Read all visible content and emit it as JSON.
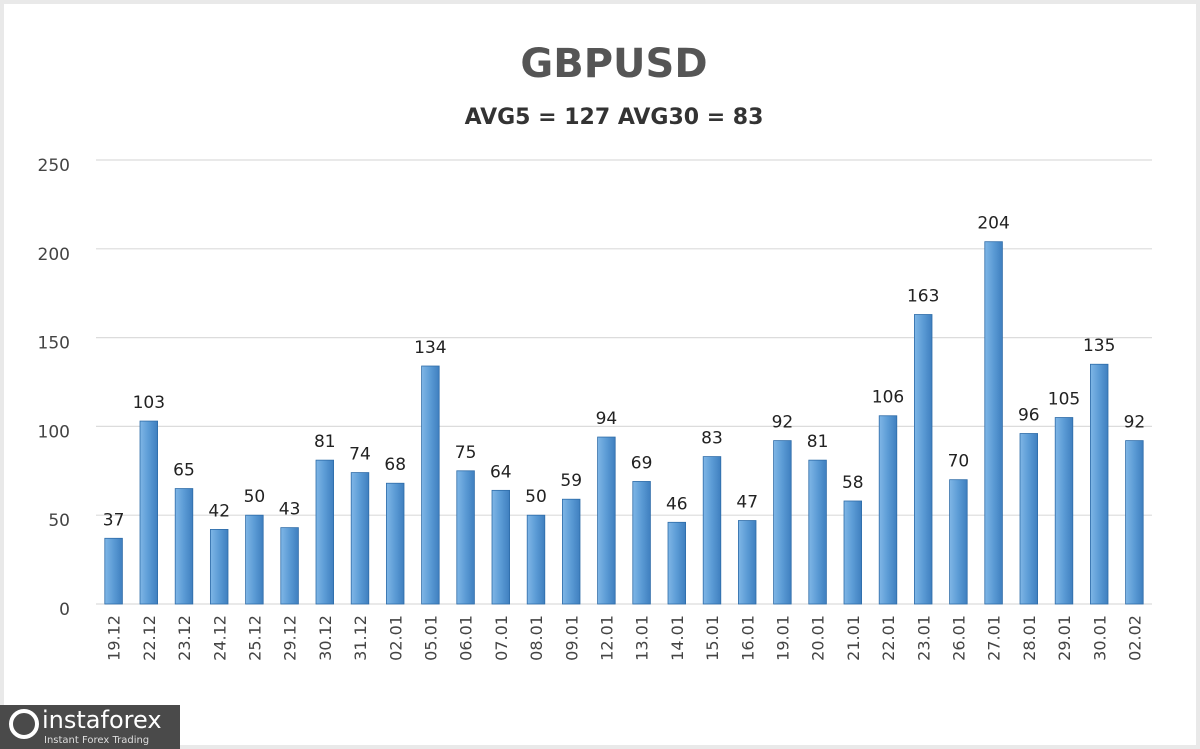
{
  "chart_data": {
    "type": "bar",
    "title": "GBPUSD",
    "subtitle": "AVG5 = 127 AVG30 = 83",
    "categories": [
      "19.12",
      "22.12",
      "23.12",
      "24.12",
      "25.12",
      "29.12",
      "30.12",
      "31.12",
      "02.01",
      "05.01",
      "06.01",
      "07.01",
      "08.01",
      "09.01",
      "12.01",
      "13.01",
      "14.01",
      "15.01",
      "16.01",
      "19.01",
      "20.01",
      "21.01",
      "22.01",
      "23.01",
      "26.01",
      "27.01",
      "28.01",
      "29.01",
      "30.01",
      "02.02"
    ],
    "values": [
      37,
      103,
      65,
      42,
      50,
      43,
      81,
      74,
      68,
      134,
      75,
      64,
      50,
      59,
      94,
      69,
      46,
      83,
      47,
      92,
      81,
      58,
      106,
      163,
      70,
      204,
      96,
      105,
      135,
      92
    ],
    "color": "#5b9bd5",
    "ylim": [
      0,
      250
    ],
    "yticks": [
      0,
      50,
      100,
      150,
      200,
      250
    ],
    "grid": true
  },
  "watermark": {
    "brand": "instaforex",
    "tagline": "Instant Forex Trading"
  }
}
